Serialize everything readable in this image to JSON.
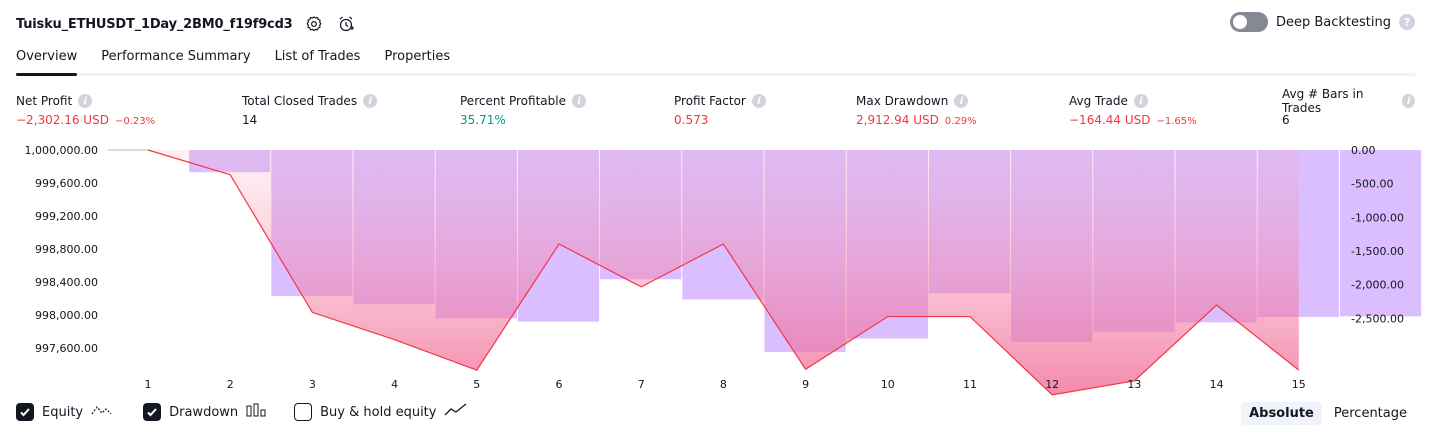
{
  "header": {
    "title": "Tuisku_ETHUSDT_1Day_2BM0_f19f9cd3",
    "settings_icon": "gear-icon",
    "alert_icon": "alarm-add-icon",
    "deep_backtesting_label": "Deep Backtesting",
    "deep_backtesting_on": false
  },
  "tabs": [
    "Overview",
    "Performance Summary",
    "List of Trades",
    "Properties"
  ],
  "active_tab": "Overview",
  "metrics": [
    {
      "label": "Net Profit",
      "value": "−2,302.16 USD",
      "sub": "−0.23%",
      "color": "#f23645"
    },
    {
      "label": "Total Closed Trades",
      "value": "14",
      "sub": "",
      "color": "#131722"
    },
    {
      "label": "Percent Profitable",
      "value": "35.71%",
      "sub": "",
      "color": "#089981"
    },
    {
      "label": "Profit Factor",
      "value": "0.573",
      "sub": "",
      "color": "#f23645"
    },
    {
      "label": "Max Drawdown",
      "value": "2,912.94 USD",
      "sub": "0.29%",
      "color": "#f23645"
    },
    {
      "label": "Avg Trade",
      "value": "−164.44 USD",
      "sub": "−1.65%",
      "color": "#f23645"
    },
    {
      "label": "Avg # Bars in Trades",
      "value": "6",
      "sub": "",
      "color": "#131722"
    }
  ],
  "chart_data": {
    "type": "line",
    "x": [
      1,
      2,
      3,
      4,
      5,
      6,
      7,
      8,
      9,
      10,
      11,
      12,
      13,
      14,
      15
    ],
    "left_axis_ticks": [
      "1,000,000.00",
      "999,600.00",
      "999,200.00",
      "998,800.00",
      "998,400.00",
      "998,000.00",
      "997,600.00"
    ],
    "right_axis_ticks": [
      "0.00",
      "-500.00",
      "-1,000.00",
      "-1,500.00",
      "-2,000.00",
      "-2,500.00"
    ],
    "left_ylim": [
      997550,
      1000000
    ],
    "right_ylim": [
      -3000,
      0
    ],
    "series": [
      {
        "name": "Equity",
        "y_axis": "left",
        "values": [
          1000000,
          999700,
          998030,
          997700,
          997330,
          998860,
          998340,
          998860,
          997340,
          997980,
          997980,
          997030,
          997200,
          998120,
          997330
        ],
        "color": "#f23645"
      },
      {
        "name": "Drawdown",
        "y_axis": "right",
        "values": [
          -330,
          -2170,
          -2290,
          -2500,
          -2550,
          -1920,
          -2220,
          -3000,
          -2800,
          -2130,
          -2850,
          -2700,
          -2560,
          -2480,
          -2470
        ],
        "color": "#cfa8ff"
      }
    ],
    "grid": false,
    "legend": "bottom-left"
  },
  "legend": [
    {
      "label": "Equity",
      "checked": true,
      "icon": "equity-line-icon"
    },
    {
      "label": "Drawdown",
      "checked": true,
      "icon": "bars-icon"
    },
    {
      "label": "Buy & hold equity",
      "checked": false,
      "icon": "trend-line-icon"
    }
  ],
  "modes": [
    "Absolute",
    "Percentage"
  ],
  "active_mode": "Absolute"
}
